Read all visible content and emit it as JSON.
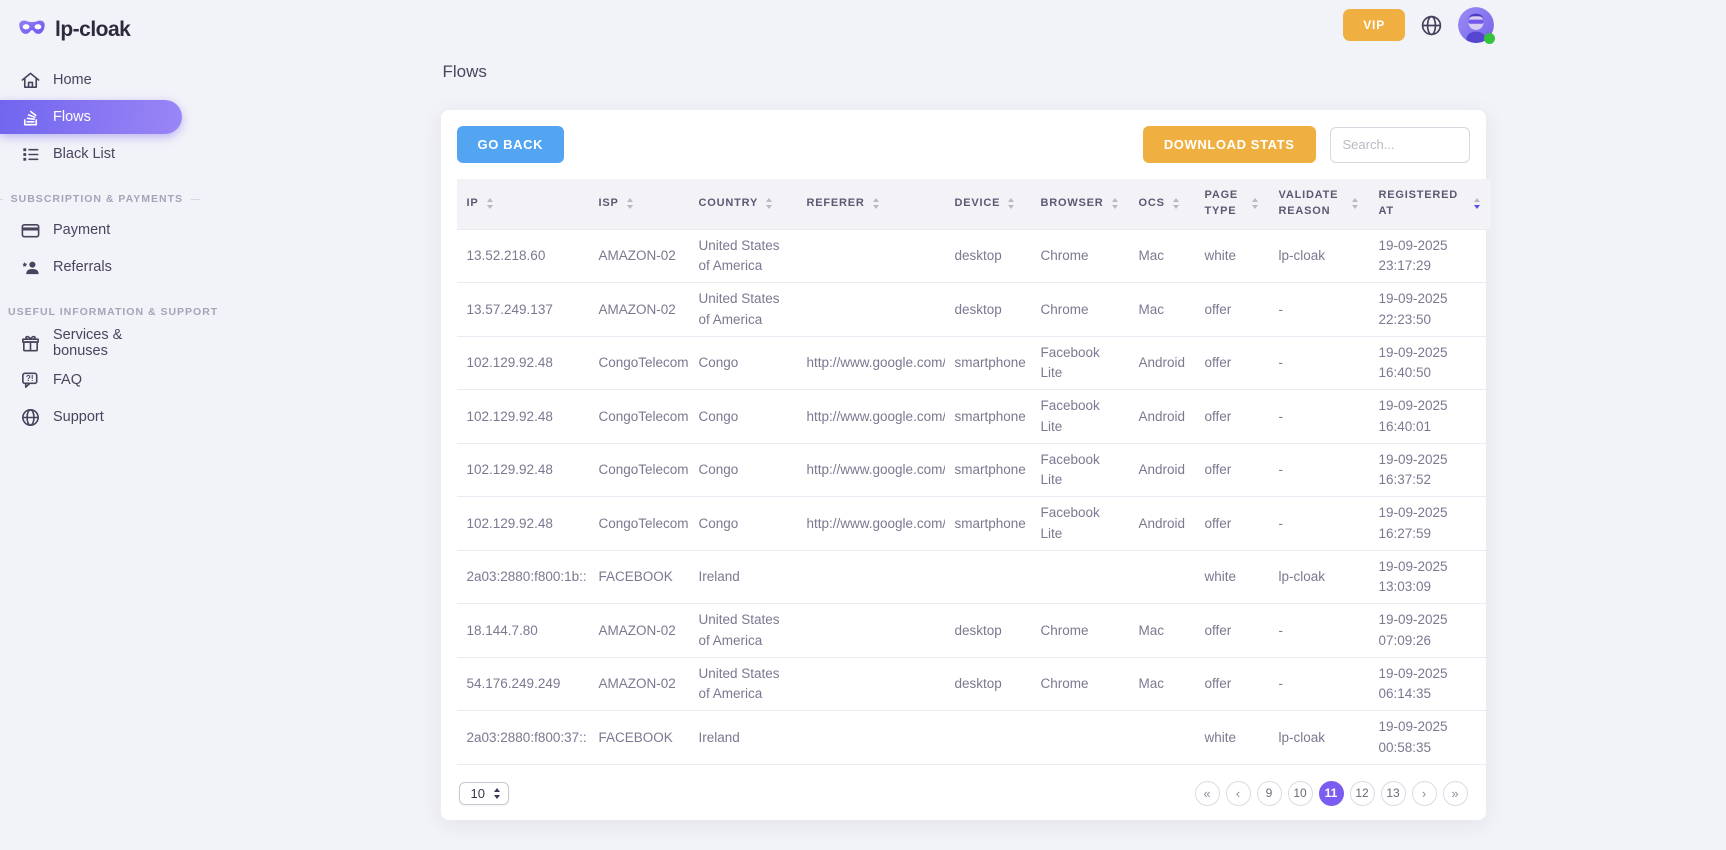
{
  "brand": {
    "name": "lp-cloak"
  },
  "topbar": {
    "vip_label": "VIP"
  },
  "sidebar": {
    "sections": [
      {
        "title": "",
        "items": [
          {
            "label": "Home",
            "active": false
          },
          {
            "label": "Flows",
            "active": true
          },
          {
            "label": "Black List",
            "active": false
          }
        ]
      },
      {
        "title": "SUBSCRIPTION & PAYMENTS",
        "items": [
          {
            "label": "Payment",
            "active": false
          },
          {
            "label": "Referrals",
            "active": false
          }
        ]
      },
      {
        "title": "USEFUL INFORMATION & SUPPORT",
        "items": [
          {
            "label": "Services & bonuses",
            "active": false
          },
          {
            "label": "FAQ",
            "active": false
          },
          {
            "label": "Support",
            "active": false
          }
        ]
      }
    ]
  },
  "page": {
    "title": "Flows"
  },
  "toolbar": {
    "go_back_label": "GO BACK",
    "download_stats_label": "DOWNLOAD STATS",
    "search_placeholder": "Search..."
  },
  "table": {
    "columns": [
      "IP",
      "ISP",
      "COUNTRY",
      "REFERER",
      "DEVICE",
      "BROWSER",
      "OCS",
      "PAGE TYPE",
      "VALIDATE REASON",
      "REGISTERED AT"
    ],
    "column_keys": [
      "ip",
      "isp",
      "country",
      "referer",
      "device",
      "browser",
      "ocs",
      "page-type",
      "validate-reason",
      "registered-at"
    ],
    "sorted_column": "REGISTERED AT",
    "rows": [
      [
        "13.52.218.60",
        "AMAZON-02",
        "United States of America",
        "",
        "desktop",
        "Chrome",
        "Mac",
        "white",
        "lp-cloak",
        "19-09-2025 23:17:29"
      ],
      [
        "13.57.249.137",
        "AMAZON-02",
        "United States of America",
        "",
        "desktop",
        "Chrome",
        "Mac",
        "offer",
        "-",
        "19-09-2025 22:23:50"
      ],
      [
        "102.129.92.48",
        "CongoTelecom",
        "Congo",
        "http://www.google.com/",
        "smartphone",
        "Facebook Lite",
        "Android",
        "offer",
        "-",
        "19-09-2025 16:40:50"
      ],
      [
        "102.129.92.48",
        "CongoTelecom",
        "Congo",
        "http://www.google.com/",
        "smartphone",
        "Facebook Lite",
        "Android",
        "offer",
        "-",
        "19-09-2025 16:40:01"
      ],
      [
        "102.129.92.48",
        "CongoTelecom",
        "Congo",
        "http://www.google.com/",
        "smartphone",
        "Facebook Lite",
        "Android",
        "offer",
        "-",
        "19-09-2025 16:37:52"
      ],
      [
        "102.129.92.48",
        "CongoTelecom",
        "Congo",
        "http://www.google.com/",
        "smartphone",
        "Facebook Lite",
        "Android",
        "offer",
        "-",
        "19-09-2025 16:27:59"
      ],
      [
        "2a03:2880:f800:1b::",
        "FACEBOOK",
        "Ireland",
        "",
        "",
        "",
        "",
        "white",
        "lp-cloak",
        "19-09-2025 13:03:09"
      ],
      [
        "18.144.7.80",
        "AMAZON-02",
        "United States of America",
        "",
        "desktop",
        "Chrome",
        "Mac",
        "offer",
        "-",
        "19-09-2025 07:09:26"
      ],
      [
        "54.176.249.249",
        "AMAZON-02",
        "United States of America",
        "",
        "desktop",
        "Chrome",
        "Mac",
        "offer",
        "-",
        "19-09-2025 06:14:35"
      ],
      [
        "2a03:2880:f800:37::",
        "FACEBOOK",
        "Ireland",
        "",
        "",
        "",
        "",
        "white",
        "lp-cloak",
        "19-09-2025 00:58:35"
      ]
    ]
  },
  "pagination": {
    "page_size": "10",
    "first_label": "«",
    "prev_label": "‹",
    "next_label": "›",
    "last_label": "»",
    "pages": [
      "9",
      "10",
      "11",
      "12",
      "13"
    ],
    "active_page": "11"
  },
  "colors": {
    "primary_purple": "#7367f0",
    "accent_orange": "#efb041",
    "accent_blue": "#53a5f1",
    "status_green": "#35c23d",
    "table_header_bg": "#f3f2f7",
    "page_bg": "#f2f3f8"
  }
}
